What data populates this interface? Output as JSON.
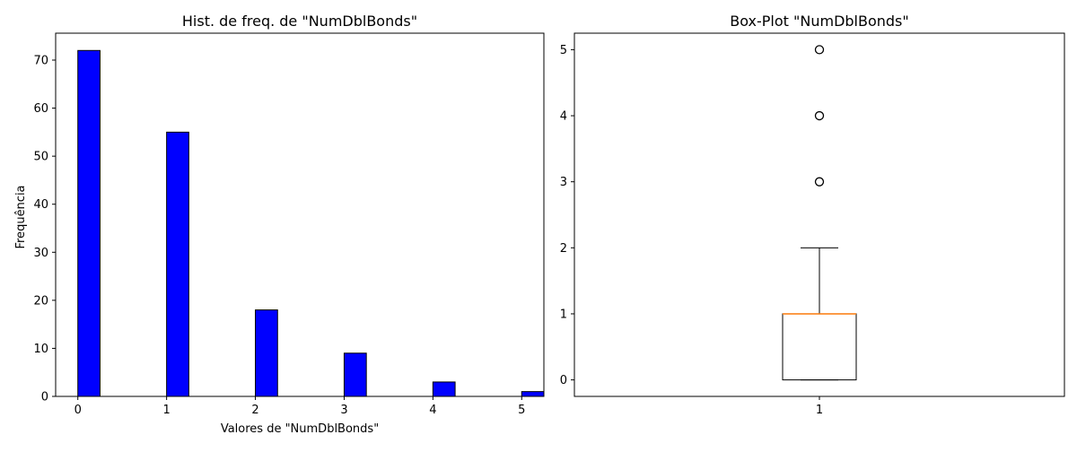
{
  "chart_data": [
    {
      "type": "bar",
      "title": "Hist. de freq. de \"NumDblBonds\"",
      "xlabel": "Valores de \"NumDblBonds\"",
      "ylabel": "Frequência",
      "bins": [
        {
          "x": 0,
          "count": 72
        },
        {
          "x": 1,
          "count": 55
        },
        {
          "x": 2,
          "count": 18
        },
        {
          "x": 3,
          "count": 9
        },
        {
          "x": 4,
          "count": 3
        },
        {
          "x": 5,
          "count": 1
        }
      ],
      "bin_width": 0.25,
      "xticks": [
        "0",
        "1",
        "2",
        "3",
        "4",
        "5"
      ],
      "yticks": [
        "0",
        "10",
        "20",
        "30",
        "40",
        "50",
        "60",
        "70"
      ],
      "xlim": [
        -0.25,
        5.25
      ],
      "ylim": [
        0,
        75.6
      ],
      "bar_color": "#0000ff",
      "edge_color": "#000000"
    },
    {
      "type": "box",
      "title": "Box-Plot \"NumDblBonds\"",
      "xticks": [
        "1"
      ],
      "yticks": [
        "0",
        "1",
        "2",
        "3",
        "4",
        "5"
      ],
      "ylim": [
        -0.25,
        5.25
      ],
      "box": {
        "min": 0,
        "q1": 0,
        "median": 1,
        "q3": 1,
        "max": 2
      },
      "outliers": [
        3,
        4,
        5
      ],
      "median_color": "#ff7f0e"
    }
  ]
}
